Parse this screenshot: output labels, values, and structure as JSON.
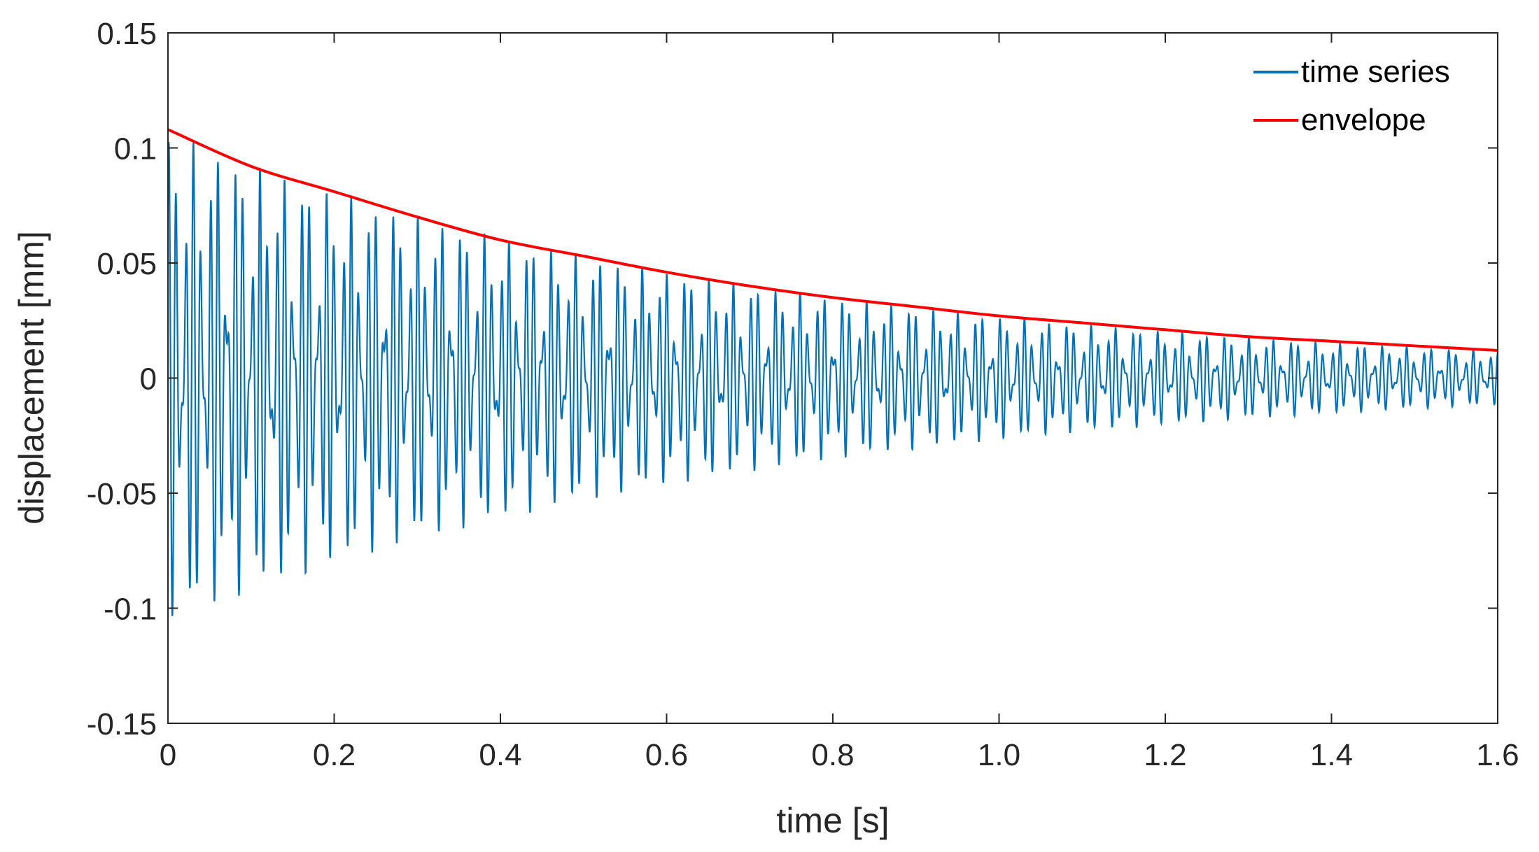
{
  "chart_data": {
    "type": "line",
    "xlabel": "time [s]",
    "ylabel": "displacement [mm]",
    "xlim": [
      0,
      1.6
    ],
    "ylim": [
      -0.15,
      0.15
    ],
    "grid": false,
    "legend_position": "top-right",
    "x_ticks": [
      0,
      0.2,
      0.4,
      0.6,
      0.8,
      1.0,
      1.2,
      1.4,
      1.6
    ],
    "x_tick_labels": [
      "0",
      "0.2",
      "0.4",
      "0.6",
      "0.8",
      "1.0",
      "1.2",
      "1.4",
      "1.6"
    ],
    "y_ticks": [
      -0.15,
      -0.1,
      -0.05,
      0,
      0.05,
      0.1,
      0.15
    ],
    "y_tick_labels": [
      "-0.15",
      "-0.1",
      "-0.05",
      "0",
      "0.05",
      "0.1",
      "0.15"
    ],
    "series": [
      {
        "name": "time series",
        "color": "#0072BD",
        "kind": "damped_oscillation",
        "dominant_frequency_hz": 100,
        "secondary_frequency_hz": 137,
        "initial_amplitude_mm": 0.107,
        "decay_rate_per_s": 1.38,
        "t_start": 0,
        "t_end": 1.6,
        "offset_mm": 0
      },
      {
        "name": "envelope",
        "color": "#FF0000",
        "x": [
          0,
          0.1,
          0.2,
          0.3,
          0.4,
          0.5,
          0.6,
          0.7,
          0.8,
          0.9,
          1.0,
          1.1,
          1.2,
          1.3,
          1.4,
          1.5,
          1.6
        ],
        "values": [
          0.108,
          0.092,
          0.081,
          0.07,
          0.06,
          0.053,
          0.046,
          0.04,
          0.035,
          0.031,
          0.027,
          0.024,
          0.021,
          0.018,
          0.016,
          0.014,
          0.012
        ]
      }
    ]
  }
}
